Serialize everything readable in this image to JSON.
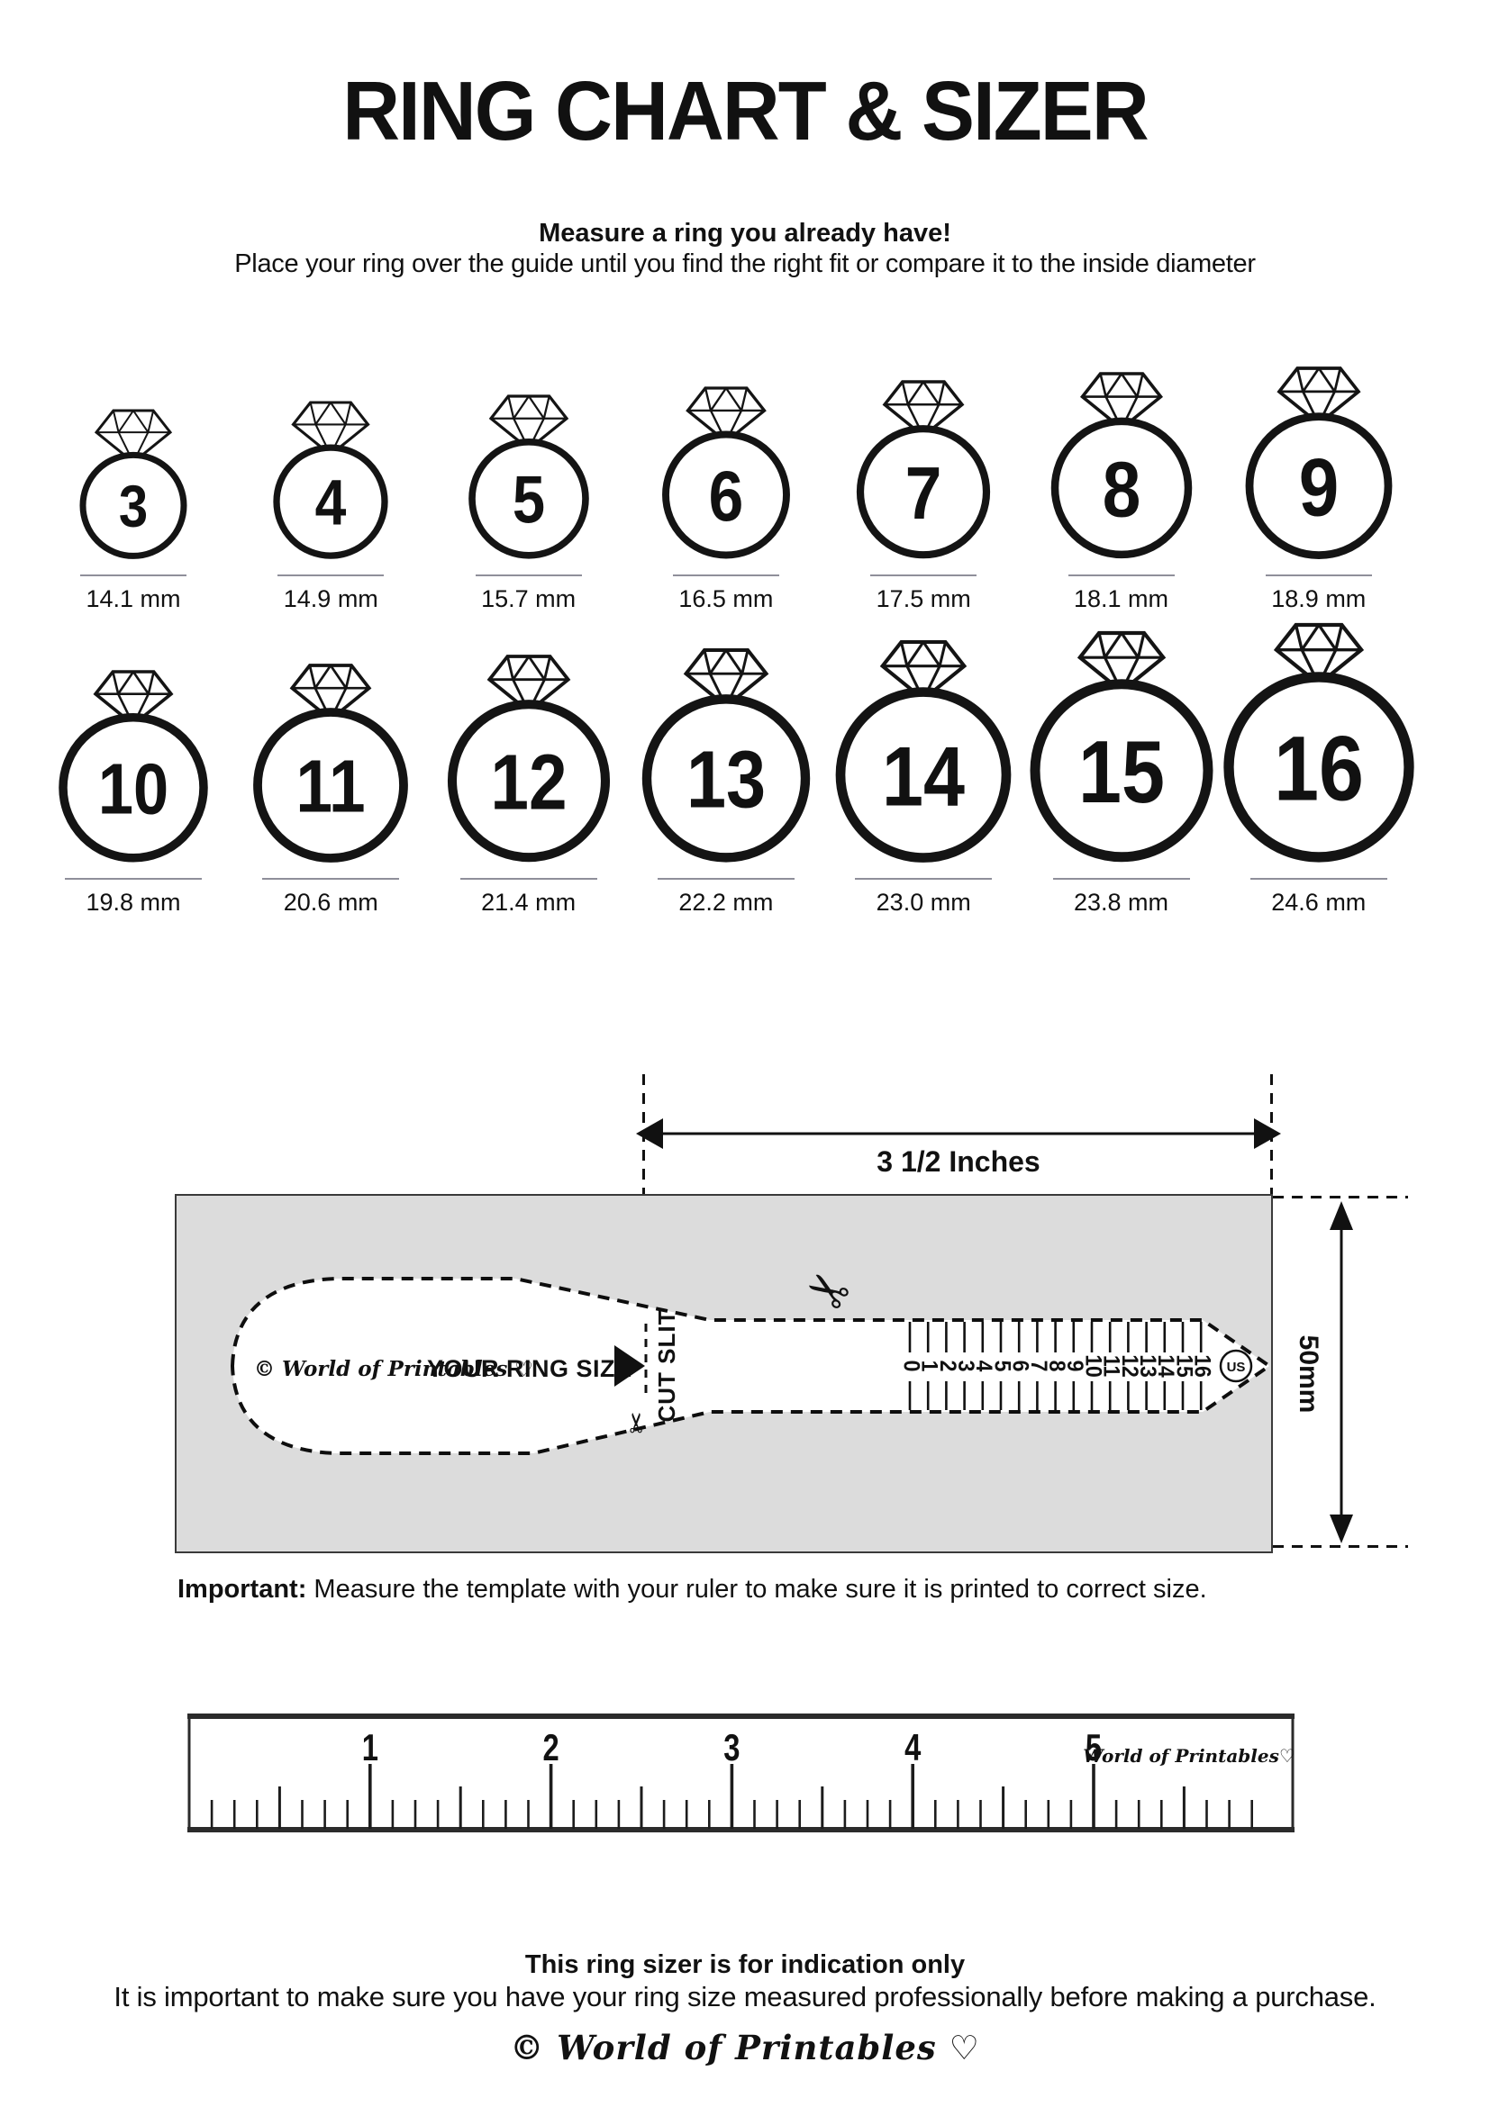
{
  "header": {
    "title": "RING CHART & SIZER",
    "subtitle_bold": "Measure a ring you already have!",
    "subtitle": "Place your ring over the guide until you find the right fit or compare it to the inside diameter"
  },
  "ring_chart": {
    "rows": [
      {
        "rings": [
          {
            "size": "3",
            "diameter_label": "14.1 mm"
          },
          {
            "size": "4",
            "diameter_label": "14.9 mm"
          },
          {
            "size": "5",
            "diameter_label": "15.7 mm"
          },
          {
            "size": "6",
            "diameter_label": "16.5 mm"
          },
          {
            "size": "7",
            "diameter_label": "17.5 mm"
          },
          {
            "size": "8",
            "diameter_label": "18.1 mm"
          },
          {
            "size": "9",
            "diameter_label": "18.9 mm"
          }
        ]
      },
      {
        "rings": [
          {
            "size": "10",
            "diameter_label": "19.8 mm"
          },
          {
            "size": "11",
            "diameter_label": "20.6 mm"
          },
          {
            "size": "12",
            "diameter_label": "21.4 mm"
          },
          {
            "size": "13",
            "diameter_label": "22.2 mm"
          },
          {
            "size": "14",
            "diameter_label": "23.0 mm"
          },
          {
            "size": "15",
            "diameter_label": "23.8 mm"
          },
          {
            "size": "16",
            "diameter_label": "24.6 mm"
          }
        ]
      }
    ]
  },
  "sizer": {
    "width_label": "3 1/2 Inches",
    "height_label": "50mm",
    "cut_slit_label": "CUT SLIT",
    "owner_mark": "© World of Printables ♡",
    "ring_size_label": "YOUR RING SIZE",
    "scale_numbers": [
      "0",
      "1",
      "2",
      "3",
      "4",
      "5",
      "6",
      "7",
      "8",
      "9",
      "10",
      "11",
      "12",
      "13",
      "14",
      "15",
      "16"
    ],
    "unit_badge": "US"
  },
  "important_note": {
    "prefix": "Important:",
    "text": " Measure the template with your ruler to make sure it is printed to correct size."
  },
  "ruler": {
    "inch_numbers": [
      "1",
      "2",
      "3",
      "4",
      "5"
    ],
    "brand": "World of Printables♡"
  },
  "footer": {
    "heading": "This ring sizer is for indication only",
    "text": "It is important to make sure you have your ring size measured professionally before making a purchase.",
    "logo": "© World of Printables ♡"
  }
}
